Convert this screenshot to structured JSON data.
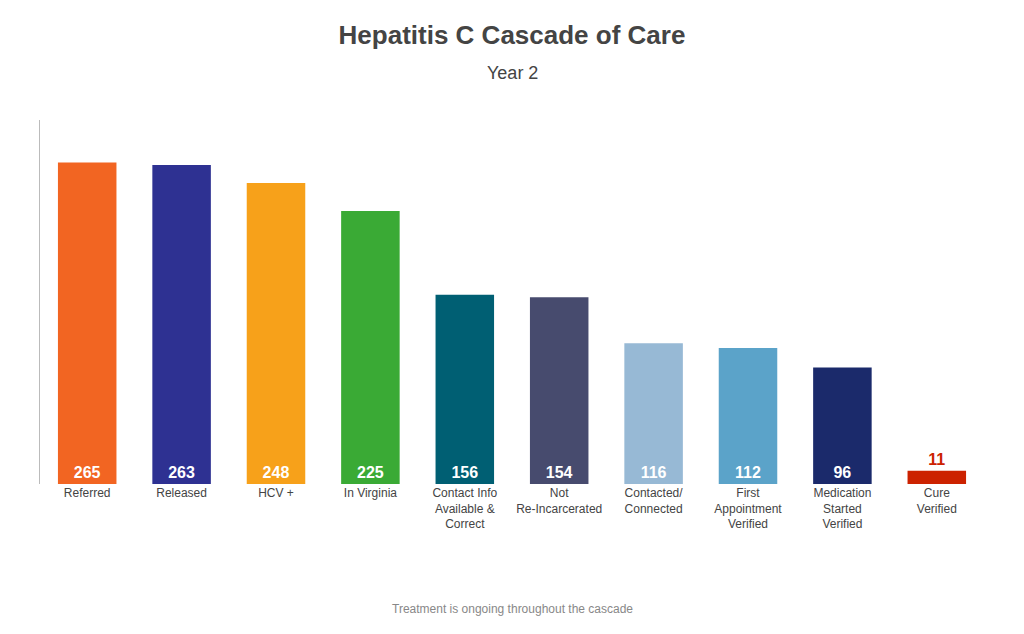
{
  "chart_data": {
    "type": "bar",
    "title": "Hepatitis C Cascade of Care",
    "subtitle": "Year 2",
    "annotations": [
      "Treatment is ongoing throughout the cascade"
    ],
    "categories": [
      "Referred",
      "Released",
      "HCV +",
      "In Virginia",
      "Contact Info\nAvailable &\nCorrect",
      "Not\nRe-Incarcerated",
      "Contacted/\nConnected",
      "First\nAppointment\nVerified",
      "Medication\nStarted\nVerified",
      "Cure\nVerified"
    ],
    "values": [
      265,
      263,
      248,
      225,
      156,
      154,
      116,
      112,
      96,
      11
    ],
    "colors": [
      "#F26522",
      "#2E3192",
      "#F7A11A",
      "#3AAA35",
      "#005F73",
      "#474B6E",
      "#97B9D5",
      "#5BA3C9",
      "#1B2A6B",
      "#CC2200"
    ],
    "ylim": [
      0,
      300
    ],
    "grid": false,
    "data_labels": true,
    "tick_labels": "x"
  }
}
